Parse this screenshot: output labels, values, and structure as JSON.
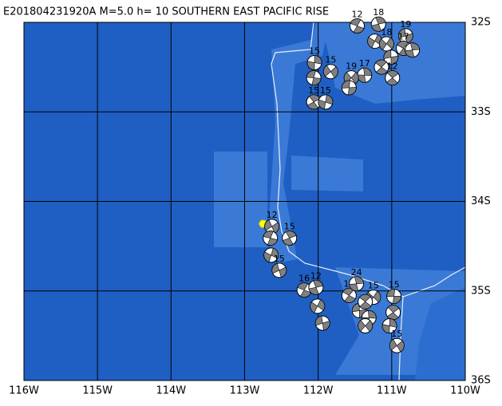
{
  "title": "E201804231920A  M=5.0  h= 10 SOUTHERN EAST PACIFIC RISE",
  "map": {
    "xlim": [
      -116,
      -110
    ],
    "ylim": [
      -36,
      -32
    ],
    "xticks": [
      {
        "value": -116,
        "label": "116W"
      },
      {
        "value": -115,
        "label": "115W"
      },
      {
        "value": -114,
        "label": "114W"
      },
      {
        "value": -113,
        "label": "113W"
      },
      {
        "value": -112,
        "label": "112W"
      },
      {
        "value": -111,
        "label": "111W"
      },
      {
        "value": -110,
        "label": "110W"
      }
    ],
    "yticks": [
      {
        "value": -32,
        "label": "32S"
      },
      {
        "value": -33,
        "label": "33S"
      },
      {
        "value": -34,
        "label": "34S"
      },
      {
        "value": -35,
        "label": "35S"
      },
      {
        "value": -36,
        "label": "36S"
      }
    ],
    "epicenter": {
      "lon": -112.75,
      "lat": -34.25
    },
    "events": [
      {
        "lon": -111.47,
        "lat": -32.04,
        "depth": 12
      },
      {
        "lon": -111.18,
        "lat": -32.02,
        "depth": 18
      },
      {
        "lon": -111.23,
        "lat": -32.21
      },
      {
        "lon": -110.81,
        "lat": -32.15,
        "depth": 19
      },
      {
        "lon": -110.84,
        "lat": -32.29,
        "depth": 17
      },
      {
        "lon": -110.72,
        "lat": -32.31
      },
      {
        "lon": -111.07,
        "lat": -32.24,
        "depth": 18
      },
      {
        "lon": -111.01,
        "lat": -32.39
      },
      {
        "lon": -111.14,
        "lat": -32.5
      },
      {
        "lon": -111.37,
        "lat": -32.59,
        "depth": 17
      },
      {
        "lon": -111.55,
        "lat": -32.62,
        "depth": 19
      },
      {
        "lon": -111.58,
        "lat": -32.73
      },
      {
        "lon": -110.99,
        "lat": -32.62,
        "depth": 12
      },
      {
        "lon": -112.05,
        "lat": -32.45,
        "depth": 15
      },
      {
        "lon": -111.83,
        "lat": -32.55,
        "depth": 15
      },
      {
        "lon": -112.06,
        "lat": -32.62
      },
      {
        "lon": -112.06,
        "lat": -32.89,
        "depth": 15
      },
      {
        "lon": -111.9,
        "lat": -32.89,
        "depth": 15
      },
      {
        "lon": -112.63,
        "lat": -34.28,
        "depth": 12
      },
      {
        "lon": -112.65,
        "lat": -34.41
      },
      {
        "lon": -112.39,
        "lat": -34.41,
        "depth": 15
      },
      {
        "lon": -112.64,
        "lat": -34.6
      },
      {
        "lon": -112.53,
        "lat": -34.77,
        "depth": 15
      },
      {
        "lon": -112.19,
        "lat": -34.99,
        "depth": 16
      },
      {
        "lon": -112.03,
        "lat": -34.96,
        "depth": 12
      },
      {
        "lon": -112.01,
        "lat": -35.17
      },
      {
        "lon": -111.94,
        "lat": -35.36
      },
      {
        "lon": -111.58,
        "lat": -35.05,
        "depth": 19
      },
      {
        "lon": -111.48,
        "lat": -34.92,
        "depth": 24
      },
      {
        "lon": -111.25,
        "lat": -35.07,
        "depth": 15
      },
      {
        "lon": -111.44,
        "lat": -35.22
      },
      {
        "lon": -111.36,
        "lat": -35.12
      },
      {
        "lon": -111.31,
        "lat": -35.3
      },
      {
        "lon": -111.36,
        "lat": -35.39
      },
      {
        "lon": -110.97,
        "lat": -35.06,
        "depth": 15
      },
      {
        "lon": -110.98,
        "lat": -35.24
      },
      {
        "lon": -111.03,
        "lat": -35.39
      },
      {
        "lon": -110.93,
        "lat": -35.61,
        "depth": 15
      }
    ]
  }
}
